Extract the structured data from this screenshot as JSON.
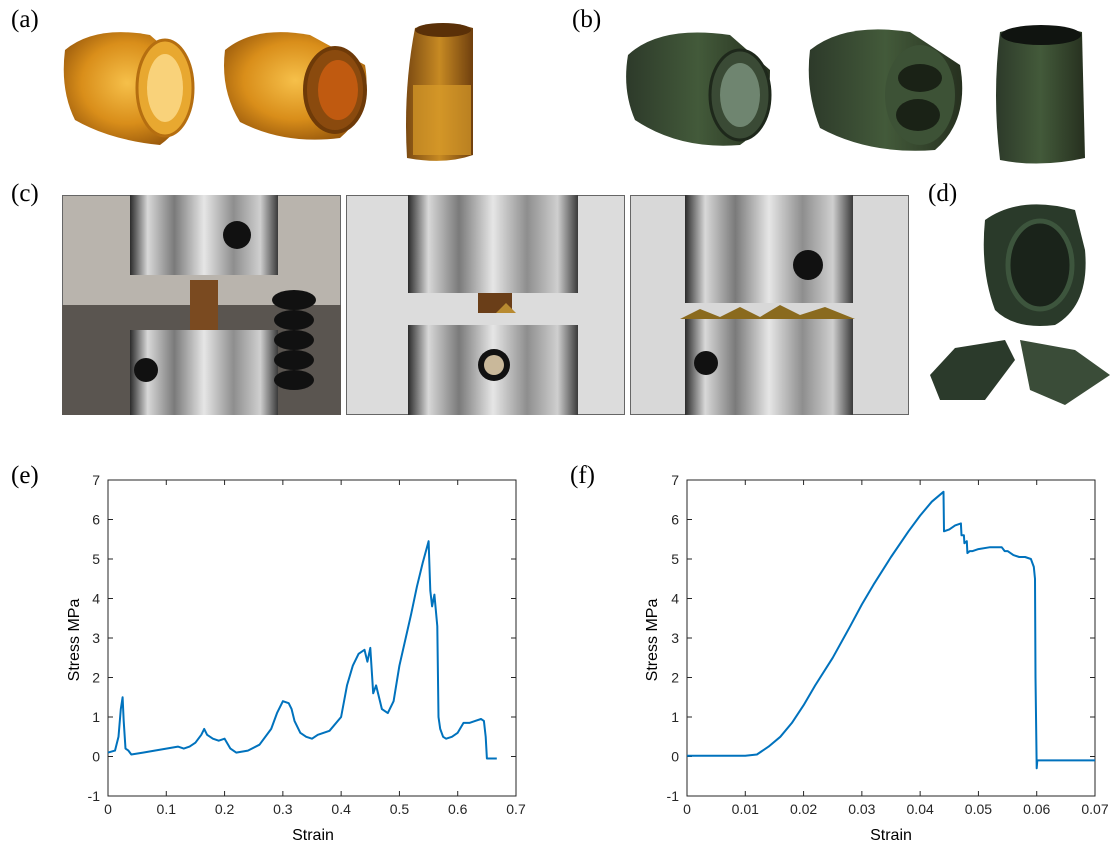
{
  "panels": {
    "a": "(a)",
    "b": "(b)",
    "c": "(c)",
    "d": "(d)",
    "e": "(e)",
    "f": "(f)"
  },
  "chart_data": [
    {
      "type": "line",
      "panel": "(e)",
      "xlabel": "Strain",
      "ylabel": "Stress MPa",
      "xlim": [
        0,
        0.7
      ],
      "ylim": [
        -1,
        7
      ],
      "xticks": [
        "0",
        "0.1",
        "0.2",
        "0.3",
        "0.4",
        "0.5",
        "0.6",
        "0.7"
      ],
      "yticks": [
        "-1",
        "0",
        "1",
        "2",
        "3",
        "4",
        "5",
        "6",
        "7"
      ],
      "line_color": "#0072BD",
      "x": [
        0,
        0.012,
        0.018,
        0.022,
        0.025,
        0.027,
        0.03,
        0.035,
        0.04,
        0.06,
        0.08,
        0.1,
        0.12,
        0.13,
        0.14,
        0.15,
        0.16,
        0.165,
        0.17,
        0.18,
        0.19,
        0.2,
        0.21,
        0.22,
        0.24,
        0.26,
        0.28,
        0.29,
        0.3,
        0.31,
        0.315,
        0.32,
        0.33,
        0.34,
        0.35,
        0.36,
        0.38,
        0.4,
        0.41,
        0.42,
        0.43,
        0.44,
        0.445,
        0.45,
        0.455,
        0.46,
        0.47,
        0.48,
        0.49,
        0.5,
        0.52,
        0.53,
        0.54,
        0.55,
        0.553,
        0.556,
        0.56,
        0.565,
        0.567,
        0.57,
        0.575,
        0.58,
        0.59,
        0.6,
        0.61,
        0.62,
        0.63,
        0.64,
        0.645,
        0.648,
        0.65,
        0.66,
        0.667
      ],
      "y": [
        0.1,
        0.15,
        0.5,
        1.2,
        1.5,
        0.9,
        0.2,
        0.15,
        0.05,
        0.1,
        0.15,
        0.2,
        0.25,
        0.2,
        0.25,
        0.35,
        0.55,
        0.7,
        0.55,
        0.45,
        0.4,
        0.45,
        0.2,
        0.1,
        0.15,
        0.3,
        0.7,
        1.1,
        1.4,
        1.35,
        1.2,
        0.9,
        0.6,
        0.5,
        0.45,
        0.55,
        0.65,
        1.0,
        1.8,
        2.3,
        2.6,
        2.7,
        2.4,
        2.75,
        1.6,
        1.8,
        1.2,
        1.1,
        1.4,
        2.3,
        3.6,
        4.3,
        4.9,
        5.45,
        4.2,
        3.8,
        4.1,
        3.3,
        1.0,
        0.7,
        0.5,
        0.45,
        0.5,
        0.6,
        0.85,
        0.85,
        0.9,
        0.95,
        0.9,
        0.5,
        -0.05,
        -0.05,
        -0.05
      ]
    },
    {
      "type": "line",
      "panel": "(f)",
      "xlabel": "Strain",
      "ylabel": "Stress MPa",
      "xlim": [
        0,
        0.07
      ],
      "ylim": [
        -1,
        7
      ],
      "xticks": [
        "0",
        "0.01",
        "0.02",
        "0.03",
        "0.04",
        "0.05",
        "0.06",
        "0.07"
      ],
      "yticks": [
        "-1",
        "0",
        "1",
        "2",
        "3",
        "4",
        "5",
        "6",
        "7"
      ],
      "line_color": "#0072BD",
      "x": [
        0,
        0.005,
        0.01,
        0.012,
        0.014,
        0.016,
        0.018,
        0.02,
        0.022,
        0.025,
        0.028,
        0.03,
        0.032,
        0.035,
        0.038,
        0.04,
        0.042,
        0.044,
        0.0441,
        0.045,
        0.046,
        0.047,
        0.0471,
        0.0475,
        0.0476,
        0.048,
        0.0481,
        0.0485,
        0.049,
        0.05,
        0.052,
        0.054,
        0.0545,
        0.055,
        0.056,
        0.057,
        0.058,
        0.059,
        0.0595,
        0.0597,
        0.0598,
        0.06,
        0.0601,
        0.0605,
        0.065,
        0.07
      ],
      "y": [
        0.02,
        0.02,
        0.02,
        0.05,
        0.25,
        0.5,
        0.85,
        1.3,
        1.8,
        2.5,
        3.3,
        3.85,
        4.35,
        5.05,
        5.7,
        6.1,
        6.45,
        6.7,
        5.7,
        5.75,
        5.85,
        5.9,
        5.6,
        5.6,
        5.4,
        5.45,
        5.15,
        5.2,
        5.2,
        5.25,
        5.3,
        5.3,
        5.2,
        5.2,
        5.1,
        5.05,
        5.05,
        5.0,
        4.8,
        4.5,
        2.0,
        -0.3,
        -0.1,
        -0.1,
        -0.1,
        -0.1
      ]
    }
  ]
}
